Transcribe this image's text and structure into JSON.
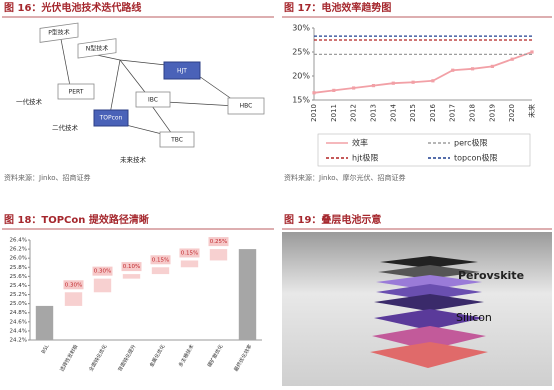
{
  "figure16": {
    "title": "图 16：光伏电池技术迭代路线",
    "nodes": [
      "P型技术",
      "N型技术",
      "PERT",
      "HJT",
      "IBC",
      "TOPcon",
      "HBC",
      "TBC"
    ],
    "generations": [
      "一代技术",
      "二代技术",
      "未来技术"
    ],
    "source": "资料来源：Jinko、招商证券"
  },
  "chart_data": [
    {
      "type": "line",
      "title": "图 17：电池效率趋势图",
      "categories": [
        "2010",
        "2011",
        "2012",
        "2013",
        "2014",
        "2015",
        "2016",
        "2017",
        "2018",
        "2019",
        "2020",
        "未来"
      ],
      "series": [
        {
          "name": "效率",
          "color": "#f2a0a6",
          "values": [
            16.5,
            17,
            17.5,
            18,
            18.5,
            18.7,
            19,
            21.2,
            21.5,
            22,
            23.5,
            25
          ]
        },
        {
          "name": "perc极限",
          "color": "#9e9e9e",
          "dash": true,
          "values": [
            24.5,
            24.5,
            24.5,
            24.5,
            24.5,
            24.5,
            24.5,
            24.5,
            24.5,
            24.5,
            24.5,
            24.5
          ]
        },
        {
          "name": "hjt极限",
          "color": "#b22222",
          "dash": true,
          "values": [
            27.5,
            27.5,
            27.5,
            27.5,
            27.5,
            27.5,
            27.5,
            27.5,
            27.5,
            27.5,
            27.5,
            27.5
          ]
        },
        {
          "name": "topcon极限",
          "color": "#1f3f8f",
          "dash": true,
          "values": [
            28.3,
            28.3,
            28.3,
            28.3,
            28.3,
            28.3,
            28.3,
            28.3,
            28.3,
            28.3,
            28.3,
            28.3
          ]
        }
      ],
      "ylim": [
        15,
        30
      ],
      "yticks": [
        {
          "value": 15,
          "label": "15%"
        },
        {
          "value": 20,
          "label": "20%"
        },
        {
          "value": 25,
          "label": "25%"
        },
        {
          "value": 30,
          "label": "30%"
        }
      ],
      "grid": false,
      "source": "资料来源：Jinko、摩尔光伏、招商证券"
    },
    {
      "type": "waterfall",
      "title": "图 18：TOPCon 提效路径清晰",
      "categories": [
        "BSL",
        "选择性发射极",
        "全面钝化优化",
        "背面钝化提升",
        "金属化优化",
        "多主栅技术",
        "硼扩散优化",
        "最终优化效率"
      ],
      "values": [
        24.95,
        0.3,
        0.3,
        0.1,
        0.15,
        0.15,
        0.25,
        26.2
      ],
      "value_labels": [
        null,
        "0.30%",
        "0.30%",
        "0.10%",
        "0.15%",
        "0.15%",
        "0.25%",
        null
      ],
      "total_color": "#a6a6a6",
      "step_color": "#f7d0d0",
      "ylim": [
        24.2,
        26.4
      ],
      "yticks": [
        {
          "value": 24.2,
          "label": "24.2%"
        },
        {
          "value": 24.4,
          "label": "24.4%"
        },
        {
          "value": 24.6,
          "label": "24.6%"
        },
        {
          "value": 24.8,
          "label": "24.8%"
        },
        {
          "value": 25.0,
          "label": "25.0%"
        },
        {
          "value": 25.2,
          "label": "25.2%"
        },
        {
          "value": 25.4,
          "label": "25.4%"
        },
        {
          "value": 25.6,
          "label": "25.6%"
        },
        {
          "value": 25.8,
          "label": "25.8%"
        },
        {
          "value": 26.0,
          "label": "26.0%"
        },
        {
          "value": 26.2,
          "label": "26.2%"
        },
        {
          "value": 26.4,
          "label": "26.4%"
        }
      ]
    }
  ],
  "figure19": {
    "title": "图 19：叠层电池示意",
    "labels": [
      "Perovskite",
      "Silicon"
    ]
  }
}
